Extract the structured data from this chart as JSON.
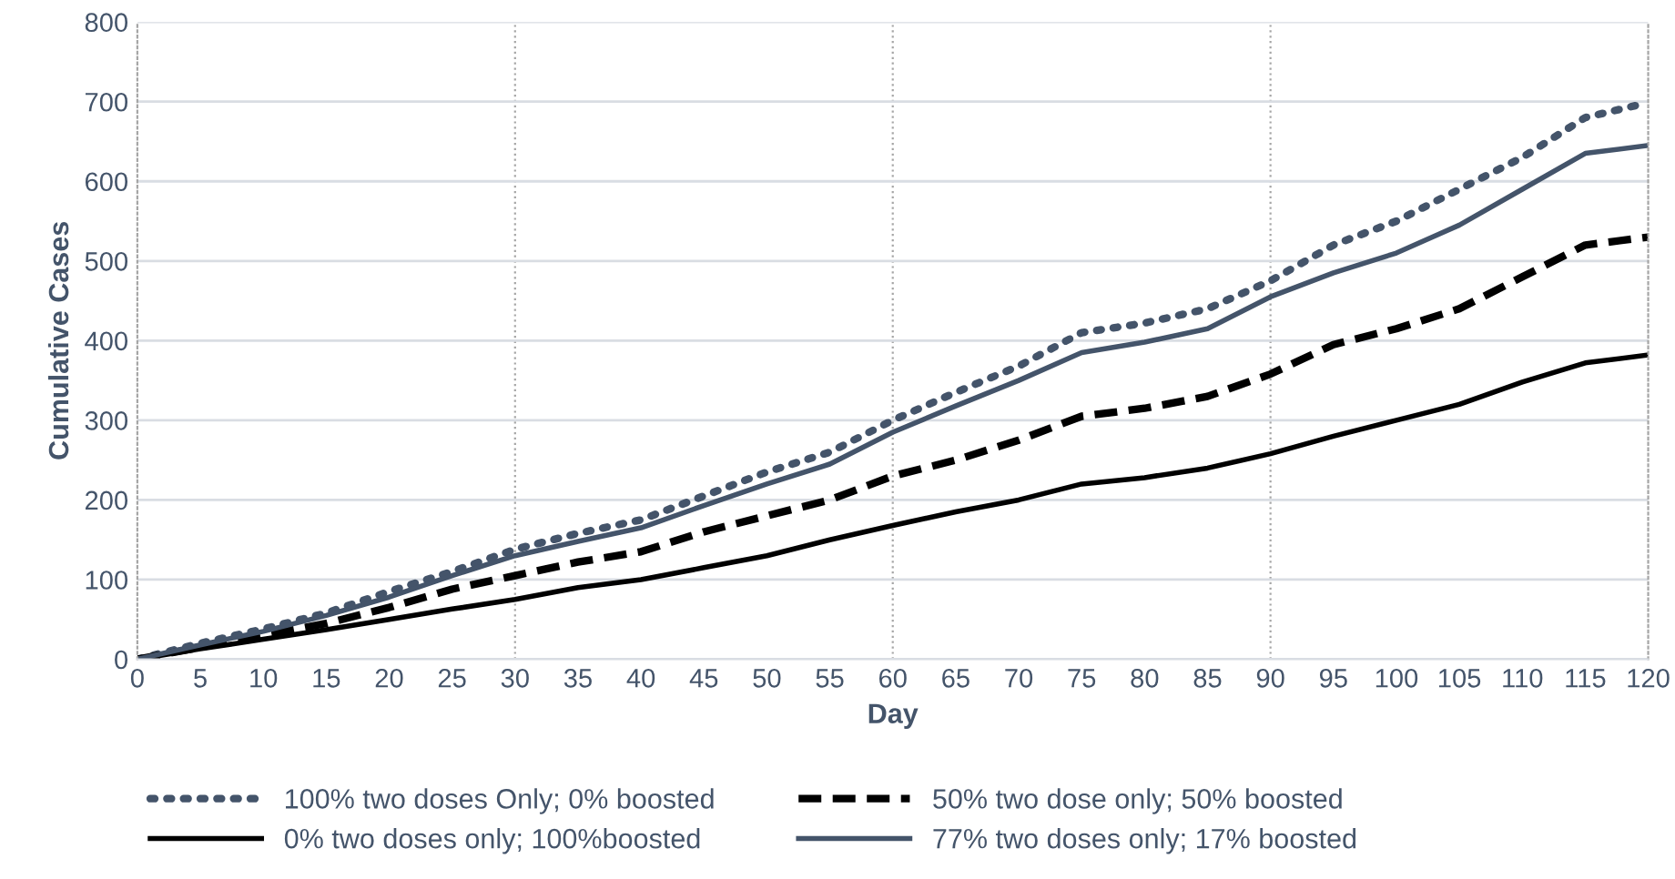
{
  "chart_data": {
    "type": "line",
    "xlabel": "Day",
    "ylabel": "Cumulative Cases",
    "x": [
      0,
      5,
      10,
      15,
      20,
      25,
      30,
      35,
      40,
      45,
      50,
      55,
      60,
      65,
      70,
      75,
      80,
      85,
      90,
      95,
      100,
      105,
      110,
      115,
      120
    ],
    "xlim": [
      0,
      120
    ],
    "xticks": [
      0,
      5,
      10,
      15,
      20,
      25,
      30,
      35,
      40,
      45,
      50,
      55,
      60,
      65,
      70,
      75,
      80,
      85,
      90,
      95,
      100,
      105,
      110,
      115,
      120
    ],
    "ylim": [
      0,
      800
    ],
    "yticks": [
      0,
      100,
      200,
      300,
      400,
      500,
      600,
      700,
      800
    ],
    "grid": "y",
    "legend": "bottom",
    "marker": "none",
    "ref_lines": [
      {
        "axis": "x",
        "value": 30,
        "label": null,
        "color": "#a6a6a6",
        "line_style": "dotted"
      },
      {
        "axis": "x",
        "value": 60,
        "label": null,
        "color": "#a6a6a6",
        "line_style": "dotted"
      },
      {
        "axis": "x",
        "value": 90,
        "label": null,
        "color": "#a6a6a6",
        "line_style": "dotted"
      }
    ],
    "series": [
      {
        "name": "100% two doses Only; 0% boosted",
        "color": "#44546a",
        "line_style": "dotted",
        "x": [
          0,
          5,
          10,
          15,
          20,
          25,
          30,
          35,
          40,
          45,
          50,
          55,
          60,
          65,
          70,
          75,
          80,
          85,
          90,
          95,
          100,
          105,
          110,
          115,
          119
        ],
        "values": [
          0,
          20,
          38,
          58,
          85,
          110,
          138,
          158,
          175,
          205,
          235,
          260,
          300,
          335,
          368,
          410,
          422,
          440,
          475,
          520,
          550,
          590,
          630,
          680,
          695
        ]
      },
      {
        "name": "50% two dose only; 50% boosted",
        "color": "#000000",
        "line_style": "dashed",
        "values": [
          0,
          15,
          30,
          45,
          65,
          88,
          105,
          122,
          135,
          160,
          180,
          200,
          230,
          250,
          275,
          305,
          315,
          330,
          358,
          395,
          415,
          440,
          480,
          520,
          530
        ]
      },
      {
        "name": "0% two doses only; 100%boosted",
        "color": "#000000",
        "line_style": "solid",
        "values": [
          0,
          13,
          25,
          37,
          50,
          63,
          75,
          90,
          100,
          115,
          130,
          150,
          168,
          185,
          200,
          220,
          228,
          240,
          258,
          280,
          300,
          320,
          348,
          372,
          382
        ]
      },
      {
        "name": "77% two doses only; 17% boosted",
        "color": "#44546a",
        "line_style": "solid",
        "values": [
          0,
          18,
          35,
          55,
          78,
          105,
          130,
          148,
          165,
          193,
          220,
          245,
          285,
          318,
          350,
          385,
          398,
          415,
          455,
          485,
          510,
          545,
          590,
          635,
          645
        ]
      }
    ]
  }
}
